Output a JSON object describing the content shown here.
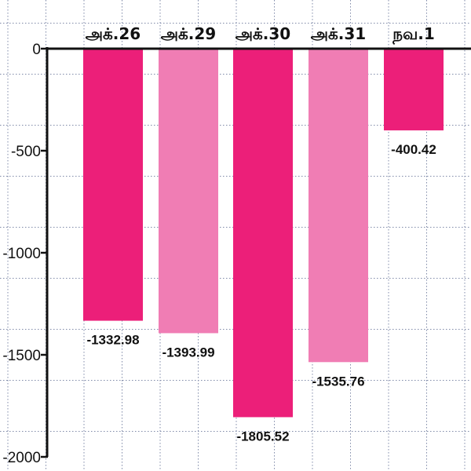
{
  "chart_data": {
    "type": "bar",
    "title": "",
    "xlabel": "",
    "ylabel": "",
    "categories": [
      "அக்.26",
      "அக்.29",
      "அக்.30",
      "அக்.31",
      "நவ.1"
    ],
    "values": [
      -1332.98,
      -1393.99,
      -1805.52,
      -1535.76,
      -400.42
    ],
    "value_labels": [
      "-1332.98",
      "-1393.99",
      "-1805.52",
      "-1535.76",
      "-400.42"
    ],
    "ylim": [
      -2000,
      0
    ],
    "yticks": [
      0,
      -500,
      -1000,
      -1500,
      -2000
    ],
    "ytick_labels": [
      "0",
      "-500",
      "-1000",
      "-1500",
      "-2000"
    ],
    "x_axis_position": "top",
    "grid": true,
    "legend": "none",
    "colors": {
      "dark": "#ec1f79",
      "light": "#f07db4",
      "grid": "#7f8aa8",
      "axis": "#111111"
    },
    "bar_color_keys": [
      "dark",
      "light",
      "dark",
      "light",
      "dark"
    ]
  }
}
